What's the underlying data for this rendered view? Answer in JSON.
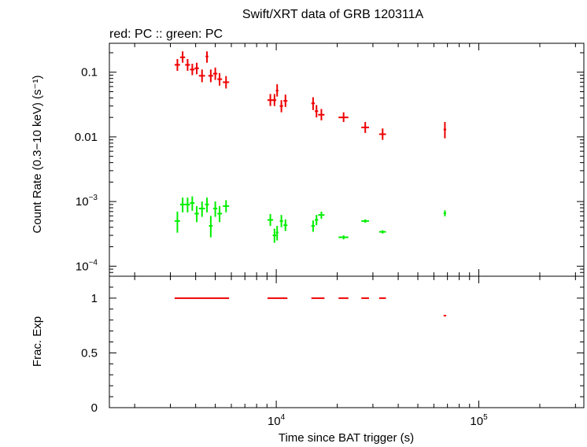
{
  "header": {
    "title": "Swift/XRT data of GRB 120311A",
    "subtitle": "red: PC  :: green: PC"
  },
  "colors": {
    "red": "#ee0000",
    "green": "#00ee00",
    "axis": "#000000"
  },
  "chart_data": [
    {
      "type": "scatter",
      "panel": "count-rate",
      "ylabel": "Count Rate (0.3−10 keV) (s⁻¹)",
      "yscale": "log",
      "xscale": "log",
      "xlim": [
        1500,
        330000
      ],
      "ylim": [
        7e-05,
        0.28
      ],
      "ytick_labels": [
        {
          "value": 0.1,
          "label": "0.1"
        },
        {
          "value": 0.01,
          "label": "0.01"
        },
        {
          "value": 0.001,
          "label": "10",
          "sup": "−3"
        },
        {
          "value": 0.0001,
          "label": "10",
          "sup": "−4"
        }
      ],
      "series": [
        {
          "name": "red: PC",
          "color": "#ee0000",
          "points": [
            {
              "x": 3250,
              "xlo": 3150,
              "xhi": 3350,
              "y": 0.13,
              "ylo": 0.105,
              "yhi": 0.16
            },
            {
              "x": 3450,
              "xlo": 3350,
              "xhi": 3550,
              "y": 0.17,
              "ylo": 0.14,
              "yhi": 0.21
            },
            {
              "x": 3650,
              "xlo": 3550,
              "xhi": 3750,
              "y": 0.13,
              "ylo": 0.105,
              "yhi": 0.16
            },
            {
              "x": 3850,
              "xlo": 3750,
              "xhi": 3950,
              "y": 0.11,
              "ylo": 0.09,
              "yhi": 0.135
            },
            {
              "x": 4050,
              "xlo": 3950,
              "xhi": 4150,
              "y": 0.115,
              "ylo": 0.093,
              "yhi": 0.14
            },
            {
              "x": 4300,
              "xlo": 4150,
              "xhi": 4450,
              "y": 0.088,
              "ylo": 0.07,
              "yhi": 0.11
            },
            {
              "x": 4550,
              "xlo": 4480,
              "xhi": 4620,
              "y": 0.175,
              "ylo": 0.14,
              "yhi": 0.21
            },
            {
              "x": 4750,
              "xlo": 4620,
              "xhi": 4880,
              "y": 0.088,
              "ylo": 0.07,
              "yhi": 0.11
            },
            {
              "x": 5000,
              "xlo": 4880,
              "xhi": 5120,
              "y": 0.095,
              "ylo": 0.076,
              "yhi": 0.118
            },
            {
              "x": 5250,
              "xlo": 5120,
              "xhi": 5400,
              "y": 0.078,
              "ylo": 0.062,
              "yhi": 0.097
            },
            {
              "x": 5650,
              "xlo": 5450,
              "xhi": 5850,
              "y": 0.07,
              "ylo": 0.056,
              "yhi": 0.087
            },
            {
              "x": 9350,
              "xlo": 9050,
              "xhi": 9650,
              "y": 0.037,
              "ylo": 0.03,
              "yhi": 0.046
            },
            {
              "x": 9800,
              "xlo": 9600,
              "xhi": 10000,
              "y": 0.037,
              "ylo": 0.03,
              "yhi": 0.046
            },
            {
              "x": 10100,
              "xlo": 9950,
              "xhi": 10250,
              "y": 0.052,
              "ylo": 0.042,
              "yhi": 0.065
            },
            {
              "x": 10600,
              "xlo": 10400,
              "xhi": 10800,
              "y": 0.03,
              "ylo": 0.024,
              "yhi": 0.037
            },
            {
              "x": 11100,
              "xlo": 10850,
              "xhi": 11350,
              "y": 0.036,
              "ylo": 0.029,
              "yhi": 0.045
            },
            {
              "x": 15200,
              "xlo": 14900,
              "xhi": 15500,
              "y": 0.033,
              "ylo": 0.026,
              "yhi": 0.041
            },
            {
              "x": 15800,
              "xlo": 15500,
              "xhi": 16100,
              "y": 0.025,
              "ylo": 0.02,
              "yhi": 0.031
            },
            {
              "x": 16700,
              "xlo": 16100,
              "xhi": 17300,
              "y": 0.022,
              "ylo": 0.018,
              "yhi": 0.027
            },
            {
              "x": 21500,
              "xlo": 20300,
              "xhi": 22700,
              "y": 0.02,
              "ylo": 0.017,
              "yhi": 0.024
            },
            {
              "x": 27500,
              "xlo": 26300,
              "xhi": 28700,
              "y": 0.014,
              "ylo": 0.0115,
              "yhi": 0.017
            },
            {
              "x": 33500,
              "xlo": 32200,
              "xhi": 34800,
              "y": 0.011,
              "ylo": 0.009,
              "yhi": 0.0135
            },
            {
              "x": 68000,
              "xlo": 67000,
              "xhi": 69000,
              "y": 0.013,
              "ylo": 0.0095,
              "yhi": 0.017
            }
          ]
        },
        {
          "name": "green: PC",
          "color": "#00ee00",
          "points": [
            {
              "x": 3250,
              "xlo": 3150,
              "xhi": 3350,
              "y": 0.0005,
              "ylo": 0.00033,
              "yhi": 0.0007
            },
            {
              "x": 3450,
              "xlo": 3350,
              "xhi": 3550,
              "y": 0.0009,
              "ylo": 0.00068,
              "yhi": 0.00115
            },
            {
              "x": 3650,
              "xlo": 3550,
              "xhi": 3750,
              "y": 0.0009,
              "ylo": 0.00068,
              "yhi": 0.00115
            },
            {
              "x": 3850,
              "xlo": 3750,
              "xhi": 3950,
              "y": 0.00095,
              "ylo": 0.00072,
              "yhi": 0.0012
            },
            {
              "x": 4050,
              "xlo": 3950,
              "xhi": 4150,
              "y": 0.00065,
              "ylo": 0.00048,
              "yhi": 0.00085
            },
            {
              "x": 4300,
              "xlo": 4150,
              "xhi": 4450,
              "y": 0.00078,
              "ylo": 0.00058,
              "yhi": 0.001
            },
            {
              "x": 4550,
              "xlo": 4450,
              "xhi": 4650,
              "y": 0.0009,
              "ylo": 0.00068,
              "yhi": 0.00115
            },
            {
              "x": 4750,
              "xlo": 4650,
              "xhi": 4850,
              "y": 0.00042,
              "ylo": 0.00028,
              "yhi": 0.0006
            },
            {
              "x": 5000,
              "xlo": 4880,
              "xhi": 5120,
              "y": 0.00078,
              "ylo": 0.00058,
              "yhi": 0.001
            },
            {
              "x": 5250,
              "xlo": 5120,
              "xhi": 5400,
              "y": 0.00065,
              "ylo": 0.00048,
              "yhi": 0.00085
            },
            {
              "x": 5650,
              "xlo": 5450,
              "xhi": 5850,
              "y": 0.00085,
              "ylo": 0.00068,
              "yhi": 0.00105
            },
            {
              "x": 9350,
              "xlo": 9050,
              "xhi": 9650,
              "y": 0.00052,
              "ylo": 0.00042,
              "yhi": 0.00064
            },
            {
              "x": 9800,
              "xlo": 9600,
              "xhi": 10000,
              "y": 0.0003,
              "ylo": 0.00023,
              "yhi": 0.00038
            },
            {
              "x": 10100,
              "xlo": 9950,
              "xhi": 10250,
              "y": 0.00033,
              "ylo": 0.00025,
              "yhi": 0.00042
            },
            {
              "x": 10600,
              "xlo": 10400,
              "xhi": 10800,
              "y": 0.0005,
              "ylo": 0.0004,
              "yhi": 0.00062
            },
            {
              "x": 11100,
              "xlo": 10850,
              "xhi": 11350,
              "y": 0.00043,
              "ylo": 0.00035,
              "yhi": 0.00053
            },
            {
              "x": 15200,
              "xlo": 14900,
              "xhi": 15500,
              "y": 0.00042,
              "ylo": 0.00034,
              "yhi": 0.00051
            },
            {
              "x": 15800,
              "xlo": 15500,
              "xhi": 16100,
              "y": 0.00052,
              "ylo": 0.00043,
              "yhi": 0.00062
            },
            {
              "x": 16700,
              "xlo": 16100,
              "xhi": 17300,
              "y": 0.00062,
              "ylo": 0.00054,
              "yhi": 0.0007
            },
            {
              "x": 21500,
              "xlo": 20300,
              "xhi": 22700,
              "y": 0.00028,
              "ylo": 0.00026,
              "yhi": 0.0003
            },
            {
              "x": 27500,
              "xlo": 26300,
              "xhi": 28700,
              "y": 0.0005,
              "ylo": 0.00047,
              "yhi": 0.00053
            },
            {
              "x": 33500,
              "xlo": 32200,
              "xhi": 34800,
              "y": 0.00034,
              "ylo": 0.00032,
              "yhi": 0.00036
            },
            {
              "x": 68000,
              "xlo": 67000,
              "xhi": 69000,
              "y": 0.00066,
              "ylo": 0.00059,
              "yhi": 0.00073
            }
          ]
        }
      ]
    },
    {
      "type": "scatter",
      "panel": "fractional-exposure",
      "ylabel": "Frac. Exp",
      "xlabel": "Time since BAT trigger (s)",
      "xscale": "log",
      "xlim": [
        1500,
        330000
      ],
      "ylim": [
        0,
        1.2
      ],
      "ytick_labels": [
        {
          "value": 0,
          "label": "0"
        },
        {
          "value": 0.5,
          "label": "0.5"
        },
        {
          "value": 1,
          "label": "1"
        }
      ],
      "xtick_labels": [
        {
          "value": 10000,
          "label": "10",
          "sup": "4"
        },
        {
          "value": 100000,
          "label": "10",
          "sup": "5"
        }
      ],
      "series": [
        {
          "color": "#ee0000",
          "segments": [
            {
              "x0": 3150,
              "x1": 5850,
              "y": 1
            },
            {
              "x0": 9050,
              "x1": 11350,
              "y": 1
            },
            {
              "x0": 14900,
              "x1": 17300,
              "y": 1
            },
            {
              "x0": 20300,
              "x1": 22700,
              "y": 1
            },
            {
              "x0": 26300,
              "x1": 28700,
              "y": 1
            },
            {
              "x0": 32200,
              "x1": 34800,
              "y": 1
            },
            {
              "x0": 67000,
              "x1": 69000,
              "y": 0.84
            }
          ]
        }
      ]
    }
  ]
}
